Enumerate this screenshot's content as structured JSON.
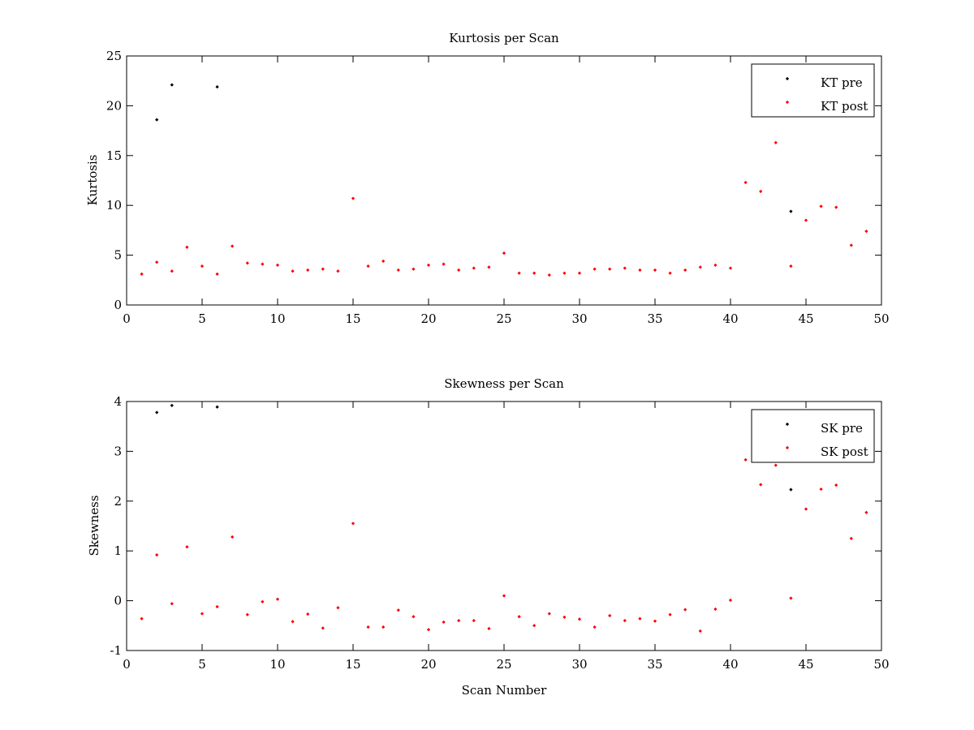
{
  "chart_data": [
    {
      "type": "scatter",
      "title": "Kurtosis per Scan",
      "xlabel": "",
      "ylabel": "Kurtosis",
      "xlim": [
        0,
        50
      ],
      "ylim": [
        0,
        25
      ],
      "xticks": [
        0,
        5,
        10,
        15,
        20,
        25,
        30,
        35,
        40,
        45,
        50
      ],
      "yticks": [
        0,
        5,
        10,
        15,
        20,
        25
      ],
      "legend_position": "top-right",
      "series": [
        {
          "name": "KT pre",
          "color": "#000000",
          "x": [
            2,
            3,
            6,
            44
          ],
          "y": [
            18.6,
            22.1,
            21.9,
            9.4
          ]
        },
        {
          "name": "KT post",
          "color": "#ff0000",
          "x": [
            1,
            2,
            3,
            4,
            5,
            6,
            7,
            8,
            9,
            10,
            11,
            12,
            13,
            14,
            15,
            16,
            17,
            18,
            19,
            20,
            21,
            22,
            23,
            24,
            25,
            26,
            27,
            28,
            29,
            30,
            31,
            32,
            33,
            34,
            35,
            36,
            37,
            38,
            39,
            40,
            41,
            42,
            43,
            44,
            45,
            46,
            47,
            48,
            49
          ],
          "y": [
            3.1,
            4.3,
            3.4,
            5.8,
            3.9,
            3.1,
            5.9,
            4.2,
            4.1,
            4.0,
            3.4,
            3.5,
            3.6,
            3.4,
            10.7,
            3.9,
            4.4,
            3.5,
            3.6,
            4.0,
            4.1,
            3.5,
            3.7,
            3.8,
            5.2,
            3.2,
            3.2,
            3.0,
            3.2,
            3.2,
            3.6,
            3.6,
            3.7,
            3.5,
            3.5,
            3.2,
            3.5,
            3.8,
            4.0,
            3.7,
            12.3,
            11.4,
            16.3,
            3.9,
            8.5,
            9.9,
            9.8,
            6.0,
            7.4
          ]
        }
      ]
    },
    {
      "type": "scatter",
      "title": "Skewness per Scan",
      "xlabel": "Scan Number",
      "ylabel": "Skewness",
      "xlim": [
        0,
        50
      ],
      "ylim": [
        -1,
        4
      ],
      "xticks": [
        0,
        5,
        10,
        15,
        20,
        25,
        30,
        35,
        40,
        45,
        50
      ],
      "yticks": [
        -1,
        0,
        1,
        2,
        3,
        4
      ],
      "legend_position": "top-right",
      "series": [
        {
          "name": "SK pre",
          "color": "#000000",
          "x": [
            2,
            3,
            6,
            44
          ],
          "y": [
            3.78,
            3.92,
            3.89,
            2.23
          ]
        },
        {
          "name": "SK post",
          "color": "#ff0000",
          "x": [
            1,
            2,
            3,
            4,
            5,
            6,
            7,
            8,
            9,
            10,
            11,
            12,
            13,
            14,
            15,
            16,
            17,
            18,
            19,
            20,
            21,
            22,
            23,
            24,
            25,
            26,
            27,
            28,
            29,
            30,
            31,
            32,
            33,
            34,
            35,
            36,
            37,
            38,
            39,
            40,
            41,
            42,
            43,
            44,
            45,
            46,
            47,
            48,
            49
          ],
          "y": [
            -0.36,
            0.92,
            -0.06,
            1.08,
            -0.26,
            -0.12,
            1.28,
            -0.28,
            -0.02,
            0.03,
            -0.42,
            -0.27,
            -0.55,
            -0.14,
            1.55,
            -0.53,
            -0.53,
            -0.19,
            -0.32,
            -0.58,
            -0.43,
            -0.4,
            -0.4,
            -0.56,
            0.1,
            -0.32,
            -0.5,
            -0.26,
            -0.33,
            -0.37,
            -0.53,
            -0.3,
            -0.4,
            -0.36,
            -0.41,
            -0.28,
            -0.18,
            -0.61,
            -0.17,
            0.01,
            2.83,
            2.33,
            2.72,
            0.05,
            1.84,
            2.24,
            2.32,
            1.25,
            1.77
          ]
        }
      ]
    }
  ]
}
